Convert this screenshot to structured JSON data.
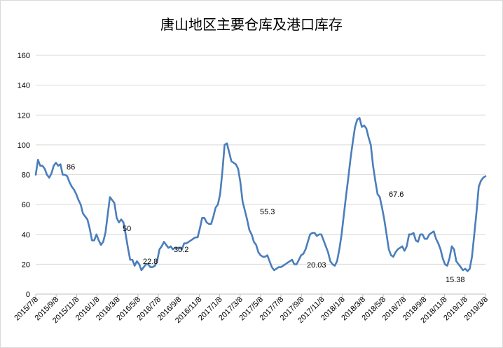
{
  "chart_data": {
    "type": "line",
    "title": "唐山地区主要仓库及港口库存",
    "xlabel": "",
    "ylabel": "",
    "ylim": [
      0,
      160
    ],
    "yticks": [
      0,
      20,
      40,
      60,
      80,
      100,
      120,
      140,
      160
    ],
    "grid": true,
    "legend": "none",
    "color": "#4a7ebb",
    "xticks": [
      "2015/7/8",
      "2015/9/8",
      "2015/11/8",
      "2016/1/8",
      "2016/3/8",
      "2016/5/8",
      "2016/7/8",
      "2016/9/8",
      "2016/11/8",
      "2017/1/8",
      "2017/3/8",
      "2017/5/8",
      "2017/7/8",
      "2017/9/8",
      "2017/11/8",
      "2018/1/8",
      "2018/3/8",
      "2018/5/8",
      "2018/7/8",
      "2018/9/8",
      "2018/11/8",
      "2019/1/8",
      "2019/3/8"
    ],
    "series": [
      {
        "values": [
          80,
          90,
          86,
          86,
          84,
          80,
          78,
          81,
          86,
          88,
          86,
          87,
          80,
          80,
          79,
          75,
          72,
          70,
          67,
          63,
          60,
          54,
          52,
          50,
          44,
          36,
          36,
          40,
          36,
          33,
          35,
          41,
          53,
          65,
          63,
          61,
          51,
          48,
          50,
          48,
          40,
          31,
          23,
          23,
          19,
          22,
          20,
          16,
          18,
          20,
          20,
          18,
          18,
          19,
          22,
          30,
          32,
          35,
          33,
          31,
          32,
          30,
          31,
          31,
          31,
          30,
          34,
          34,
          35,
          36,
          37,
          38,
          38,
          44,
          51,
          51,
          48,
          47,
          47,
          52,
          58,
          60,
          67,
          82,
          100,
          101,
          95,
          89,
          88,
          87,
          84,
          75,
          62,
          56,
          50,
          43,
          40,
          35,
          33,
          28,
          26,
          25,
          25,
          26,
          22,
          18,
          16,
          17,
          18,
          18,
          19,
          20,
          21,
          22,
          23,
          20,
          20,
          23,
          26,
          27,
          30,
          35,
          40,
          41,
          41,
          39,
          40,
          40,
          36,
          32,
          28,
          22,
          20,
          19,
          22,
          30,
          40,
          53,
          66,
          78,
          91,
          102,
          112,
          117,
          118,
          112,
          113,
          111,
          105,
          100,
          86,
          76,
          67,
          65,
          58,
          50,
          40,
          30,
          26,
          25,
          28,
          30,
          31,
          32,
          29,
          32,
          40,
          40,
          41,
          36,
          35,
          40,
          40,
          37,
          37,
          40,
          41,
          42,
          37,
          34,
          30,
          24,
          20,
          19,
          24,
          32,
          30,
          22,
          20,
          18,
          16,
          17,
          15.38,
          17,
          25,
          40,
          55,
          72,
          76,
          78,
          79
        ]
      }
    ],
    "annotations": [
      "86",
      "50",
      "22.8",
      "30.2",
      "55.3",
      "20.03",
      "67.6",
      "15.38"
    ]
  }
}
